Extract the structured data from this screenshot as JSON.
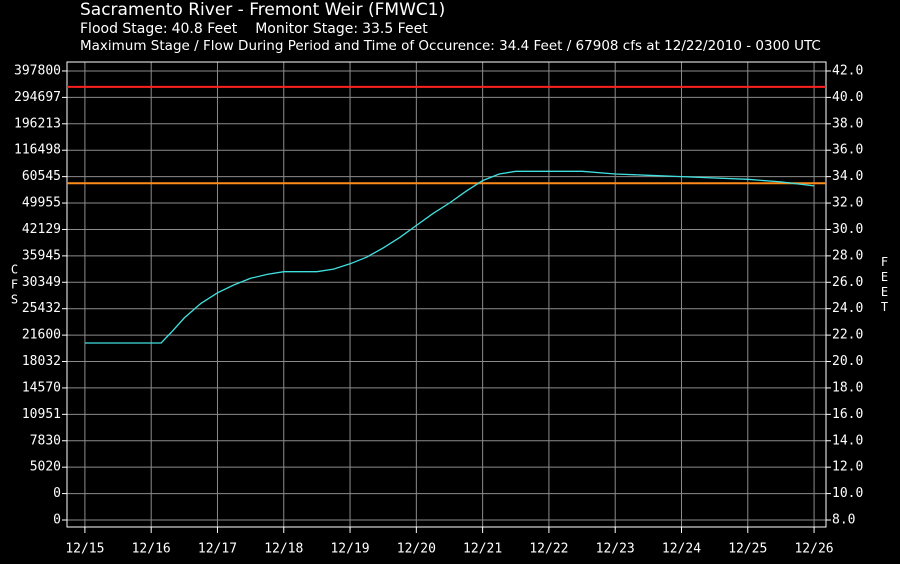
{
  "chart_data": {
    "type": "line",
    "title": "Sacramento River - Fremont Weir (FMWC1)",
    "flood_stage": {
      "label": "Flood Stage:",
      "value": 40.8,
      "value_label": "40.8 Feet",
      "color": "#ff2020"
    },
    "monitor_stage": {
      "label": "Monitor Stage:",
      "value": 33.5,
      "value_label": "33.5 Feet",
      "color": "#ff8c1a"
    },
    "subtitle": "Maximum Stage / Flow During Period and Time of Occurence: 34.4 Feet / 67908 cfs at 12/22/2010 - 0300 UTC",
    "y_label": "CFS",
    "y2_label": "FEET",
    "xlim": [
      14.73,
      26.18
    ],
    "xticks": [
      {
        "value": 15,
        "label": "12/15"
      },
      {
        "value": 16,
        "label": "12/16"
      },
      {
        "value": 17,
        "label": "12/17"
      },
      {
        "value": 18,
        "label": "12/18"
      },
      {
        "value": 19,
        "label": "12/19"
      },
      {
        "value": 20,
        "label": "12/20"
      },
      {
        "value": 21,
        "label": "12/21"
      },
      {
        "value": 22,
        "label": "12/22"
      },
      {
        "value": 23,
        "label": "12/23"
      },
      {
        "value": 24,
        "label": "12/24"
      },
      {
        "value": 25,
        "label": "12/25"
      },
      {
        "value": 26,
        "label": "12/26"
      }
    ],
    "ylim": [
      7.47,
      42.68
    ],
    "yticks": [
      {
        "value": 42,
        "label": "42.0"
      },
      {
        "value": 40,
        "label": "40.0"
      },
      {
        "value": 38,
        "label": "38.0"
      },
      {
        "value": 36,
        "label": "36.0"
      },
      {
        "value": 34,
        "label": "34.0"
      },
      {
        "value": 32,
        "label": "32.0"
      },
      {
        "value": 30,
        "label": "30.0"
      },
      {
        "value": 28,
        "label": "28.0"
      },
      {
        "value": 26,
        "label": "26.0"
      },
      {
        "value": 24,
        "label": "24.0"
      },
      {
        "value": 22,
        "label": "22.0"
      },
      {
        "value": 20,
        "label": "20.0"
      },
      {
        "value": 18,
        "label": "18.0"
      },
      {
        "value": 16,
        "label": "16.0"
      },
      {
        "value": 14,
        "label": "14.0"
      },
      {
        "value": 12,
        "label": "12.0"
      },
      {
        "value": 10,
        "label": "10.0"
      },
      {
        "value": 8,
        "label": "8.0"
      }
    ],
    "cfs_ticks": [
      397800,
      294697,
      196213,
      116498,
      60545,
      49955,
      42129,
      35945,
      30349,
      25432,
      21600,
      18032,
      14570,
      10951,
      7830,
      5020,
      0,
      0
    ],
    "grid": true,
    "series": [
      {
        "color": "#40e0e0",
        "x": [
          15,
          15.5,
          16,
          16.15,
          16.3,
          16.5,
          16.75,
          17,
          17.25,
          17.5,
          17.75,
          18,
          18.25,
          18.5,
          18.75,
          19,
          19.25,
          19.5,
          19.75,
          20,
          20.25,
          20.5,
          20.75,
          21,
          21.25,
          21.5,
          22,
          22.5,
          23,
          23.5,
          24,
          24.5,
          25,
          25.5,
          26
        ],
        "values": [
          21.4,
          21.4,
          21.4,
          21.4,
          22.2,
          23.3,
          24.4,
          25.2,
          25.8,
          26.3,
          26.6,
          26.8,
          26.8,
          26.8,
          27.0,
          27.4,
          27.9,
          28.6,
          29.4,
          30.3,
          31.2,
          32.0,
          32.9,
          33.7,
          34.2,
          34.4,
          34.4,
          34.4,
          34.2,
          34.1,
          34.0,
          33.9,
          33.8,
          33.6,
          33.3
        ]
      }
    ]
  }
}
